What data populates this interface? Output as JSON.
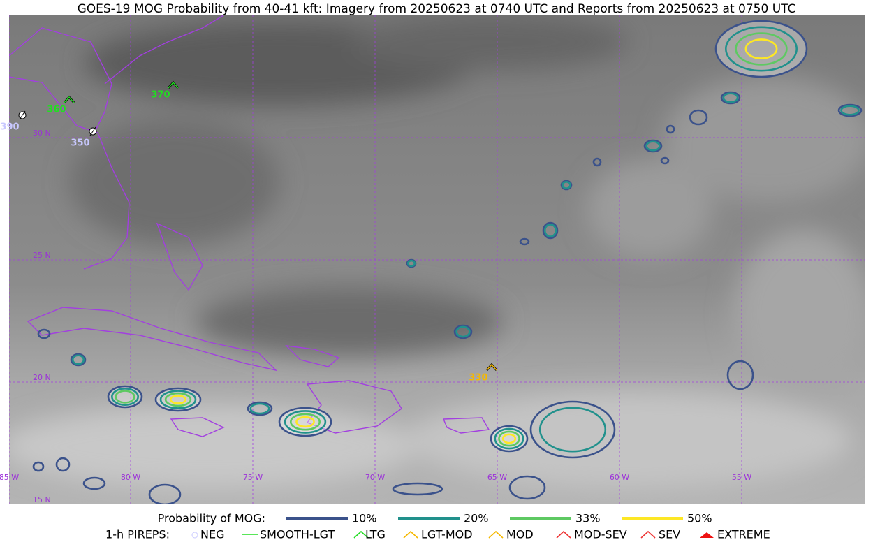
{
  "title": "GOES-19 MOG Probability from 40-41 kft: Imagery from 20250623 at 0740 UTC and Reports from 20250623 at 0750 UTC",
  "map": {
    "lat_labels": [
      "30 N",
      "25 N",
      "20 N",
      "15 N"
    ],
    "lon_labels": [
      "85 W",
      "80 W",
      "75 W",
      "70 W",
      "65 W",
      "60 W",
      "55 W"
    ]
  },
  "pireps": [
    {
      "level": 390,
      "type": "NEG",
      "color": "#c8c8ff"
    },
    {
      "level": 350,
      "type": "NEG",
      "color": "#c8c8ff"
    },
    {
      "level": 360,
      "type": "LTG",
      "color": "#22dd22"
    },
    {
      "level": 370,
      "type": "LTG",
      "color": "#22dd22"
    },
    {
      "level": 330,
      "type": "LGT-MOD",
      "color": "#f5b800"
    }
  ],
  "legend": {
    "probability_title": "Probability of MOG:",
    "probability_items": [
      {
        "label": "10%",
        "color": "#3b528b"
      },
      {
        "label": "20%",
        "color": "#21918c"
      },
      {
        "label": "33%",
        "color": "#5ec962"
      },
      {
        "label": "50%",
        "color": "#fde725"
      }
    ],
    "pirep_title": "1-h PIREPS:",
    "pirep_items": [
      "NEG",
      "SMOOTH-LGT",
      "LTG",
      "LGT-MOD",
      "MOD",
      "MOD-SEV",
      "SEV",
      "EXTREME"
    ]
  }
}
